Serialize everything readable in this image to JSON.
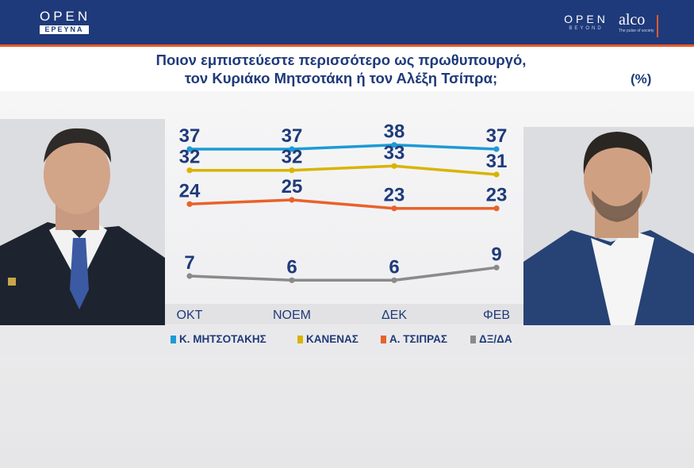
{
  "header": {
    "brand_left": "OPEN",
    "brand_left_sub": "ΕΡΕΥΝΑ",
    "brand_right": "OPEN",
    "brand_right_sub": "BEYOND",
    "partner": "alco",
    "partner_tag": "The pulse of society"
  },
  "colors": {
    "header_bg": "#1f3a7a",
    "accent_orange": "#e85a2a",
    "text_navy": "#1f3a7a"
  },
  "chart_data": {
    "type": "line",
    "title": "Ποιον εμπιστεύεστε περισσότερο ως πρωθυπουργό,",
    "subtitle": "τον Κυριάκο Μητσοτάκη ή τον Αλέξη Τσίπρα;",
    "unit": "(%)",
    "categories": [
      "ΟΚΤ",
      "ΝΟΕΜ",
      "ΔΕΚ",
      "ΦΕΒ"
    ],
    "series": [
      {
        "name": "Κ. ΜΗΤΣΟΤΑΚΗΣ",
        "color": "#1c9ad6",
        "values": [
          37,
          37,
          38,
          37
        ]
      },
      {
        "name": "ΚΑΝΕΝΑΣ",
        "color": "#d9b400",
        "values": [
          32,
          32,
          33,
          31
        ]
      },
      {
        "name": "Α. ΤΣΙΠΡΑΣ",
        "color": "#e8622a",
        "values": [
          24,
          25,
          23,
          23
        ]
      },
      {
        "name": "ΔΞ/ΔΑ",
        "color": "#8a8a8a",
        "values": [
          7,
          6,
          6,
          9
        ]
      }
    ],
    "legend_position": "bottom",
    "grid": false
  }
}
